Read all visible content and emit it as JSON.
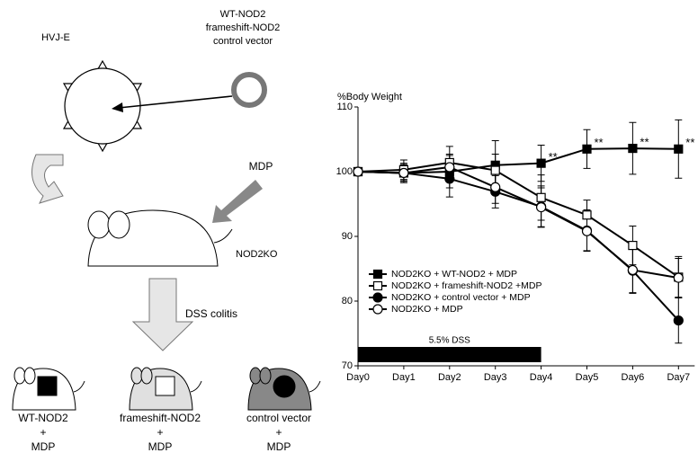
{
  "diagram": {
    "hvj_label": "HVJ-E",
    "vector_labels": [
      "WT-NOD2",
      "frameshift-NOD2",
      "control vector"
    ],
    "mdp_label": "MDP",
    "mouse_label": "NOD2KO",
    "treatment_label": "DSS colitis",
    "groups": [
      [
        "WT-NOD2",
        "+",
        "MDP"
      ],
      [
        "frameshift-NOD2",
        "+",
        "MDP"
      ],
      [
        "control vector",
        "+",
        "MDP"
      ]
    ]
  },
  "chart_data": {
    "type": "line",
    "y_label": "%Body Weight",
    "categories": [
      "Day0",
      "Day1",
      "Day2",
      "Day3",
      "Day4",
      "Day5",
      "Day6",
      "Day7"
    ],
    "ylim": [
      70,
      110
    ],
    "yticks": [
      70,
      80,
      90,
      100,
      110
    ],
    "series": [
      {
        "name": "NOD2KO + WT-NOD2 + MDP",
        "color": "#000000",
        "marker": "square-filled",
        "values": [
          100,
          99.8,
          100,
          101,
          101.3,
          103.5,
          103.6,
          103.5
        ],
        "errors": [
          0,
          1.5,
          2.5,
          3.8,
          2.8,
          3,
          4,
          4.5
        ]
      },
      {
        "name": "NOD2KO + frameshift-NOD2 +MDP",
        "color": "#000000",
        "marker": "square-open",
        "values": [
          100,
          100.3,
          101.4,
          100.2,
          96,
          93.3,
          88.6,
          83.7
        ],
        "errors": [
          0,
          1.5,
          2.5,
          2.5,
          3.5,
          2.3,
          3,
          3.2
        ]
      },
      {
        "name": "NOD2KO + control vector + MDP",
        "color": "#000000",
        "marker": "circle-filled",
        "values": [
          100,
          99.8,
          98.9,
          96.9,
          94.6,
          90.9,
          84.7,
          77
        ],
        "errors": [
          0,
          1.3,
          2.8,
          2.5,
          3.2,
          3.2,
          3.5,
          3.5
        ]
      },
      {
        "name": "NOD2KO + MDP",
        "color": "#000000",
        "marker": "circle-open",
        "values": [
          100,
          99.8,
          100.7,
          97.6,
          94.5,
          90.8,
          84.8,
          83.6
        ],
        "errors": [
          0,
          1.2,
          2,
          2.5,
          3,
          3,
          3.5,
          3
        ]
      }
    ],
    "annotations": [
      {
        "text": "**",
        "category": "Day4"
      },
      {
        "text": "**",
        "category": "Day5"
      },
      {
        "text": "**",
        "category": "Day6"
      },
      {
        "text": "**",
        "category": "Day7"
      }
    ],
    "dss_bar": {
      "label": "5.5% DSS",
      "start": "Day0",
      "end": "Day4"
    }
  }
}
